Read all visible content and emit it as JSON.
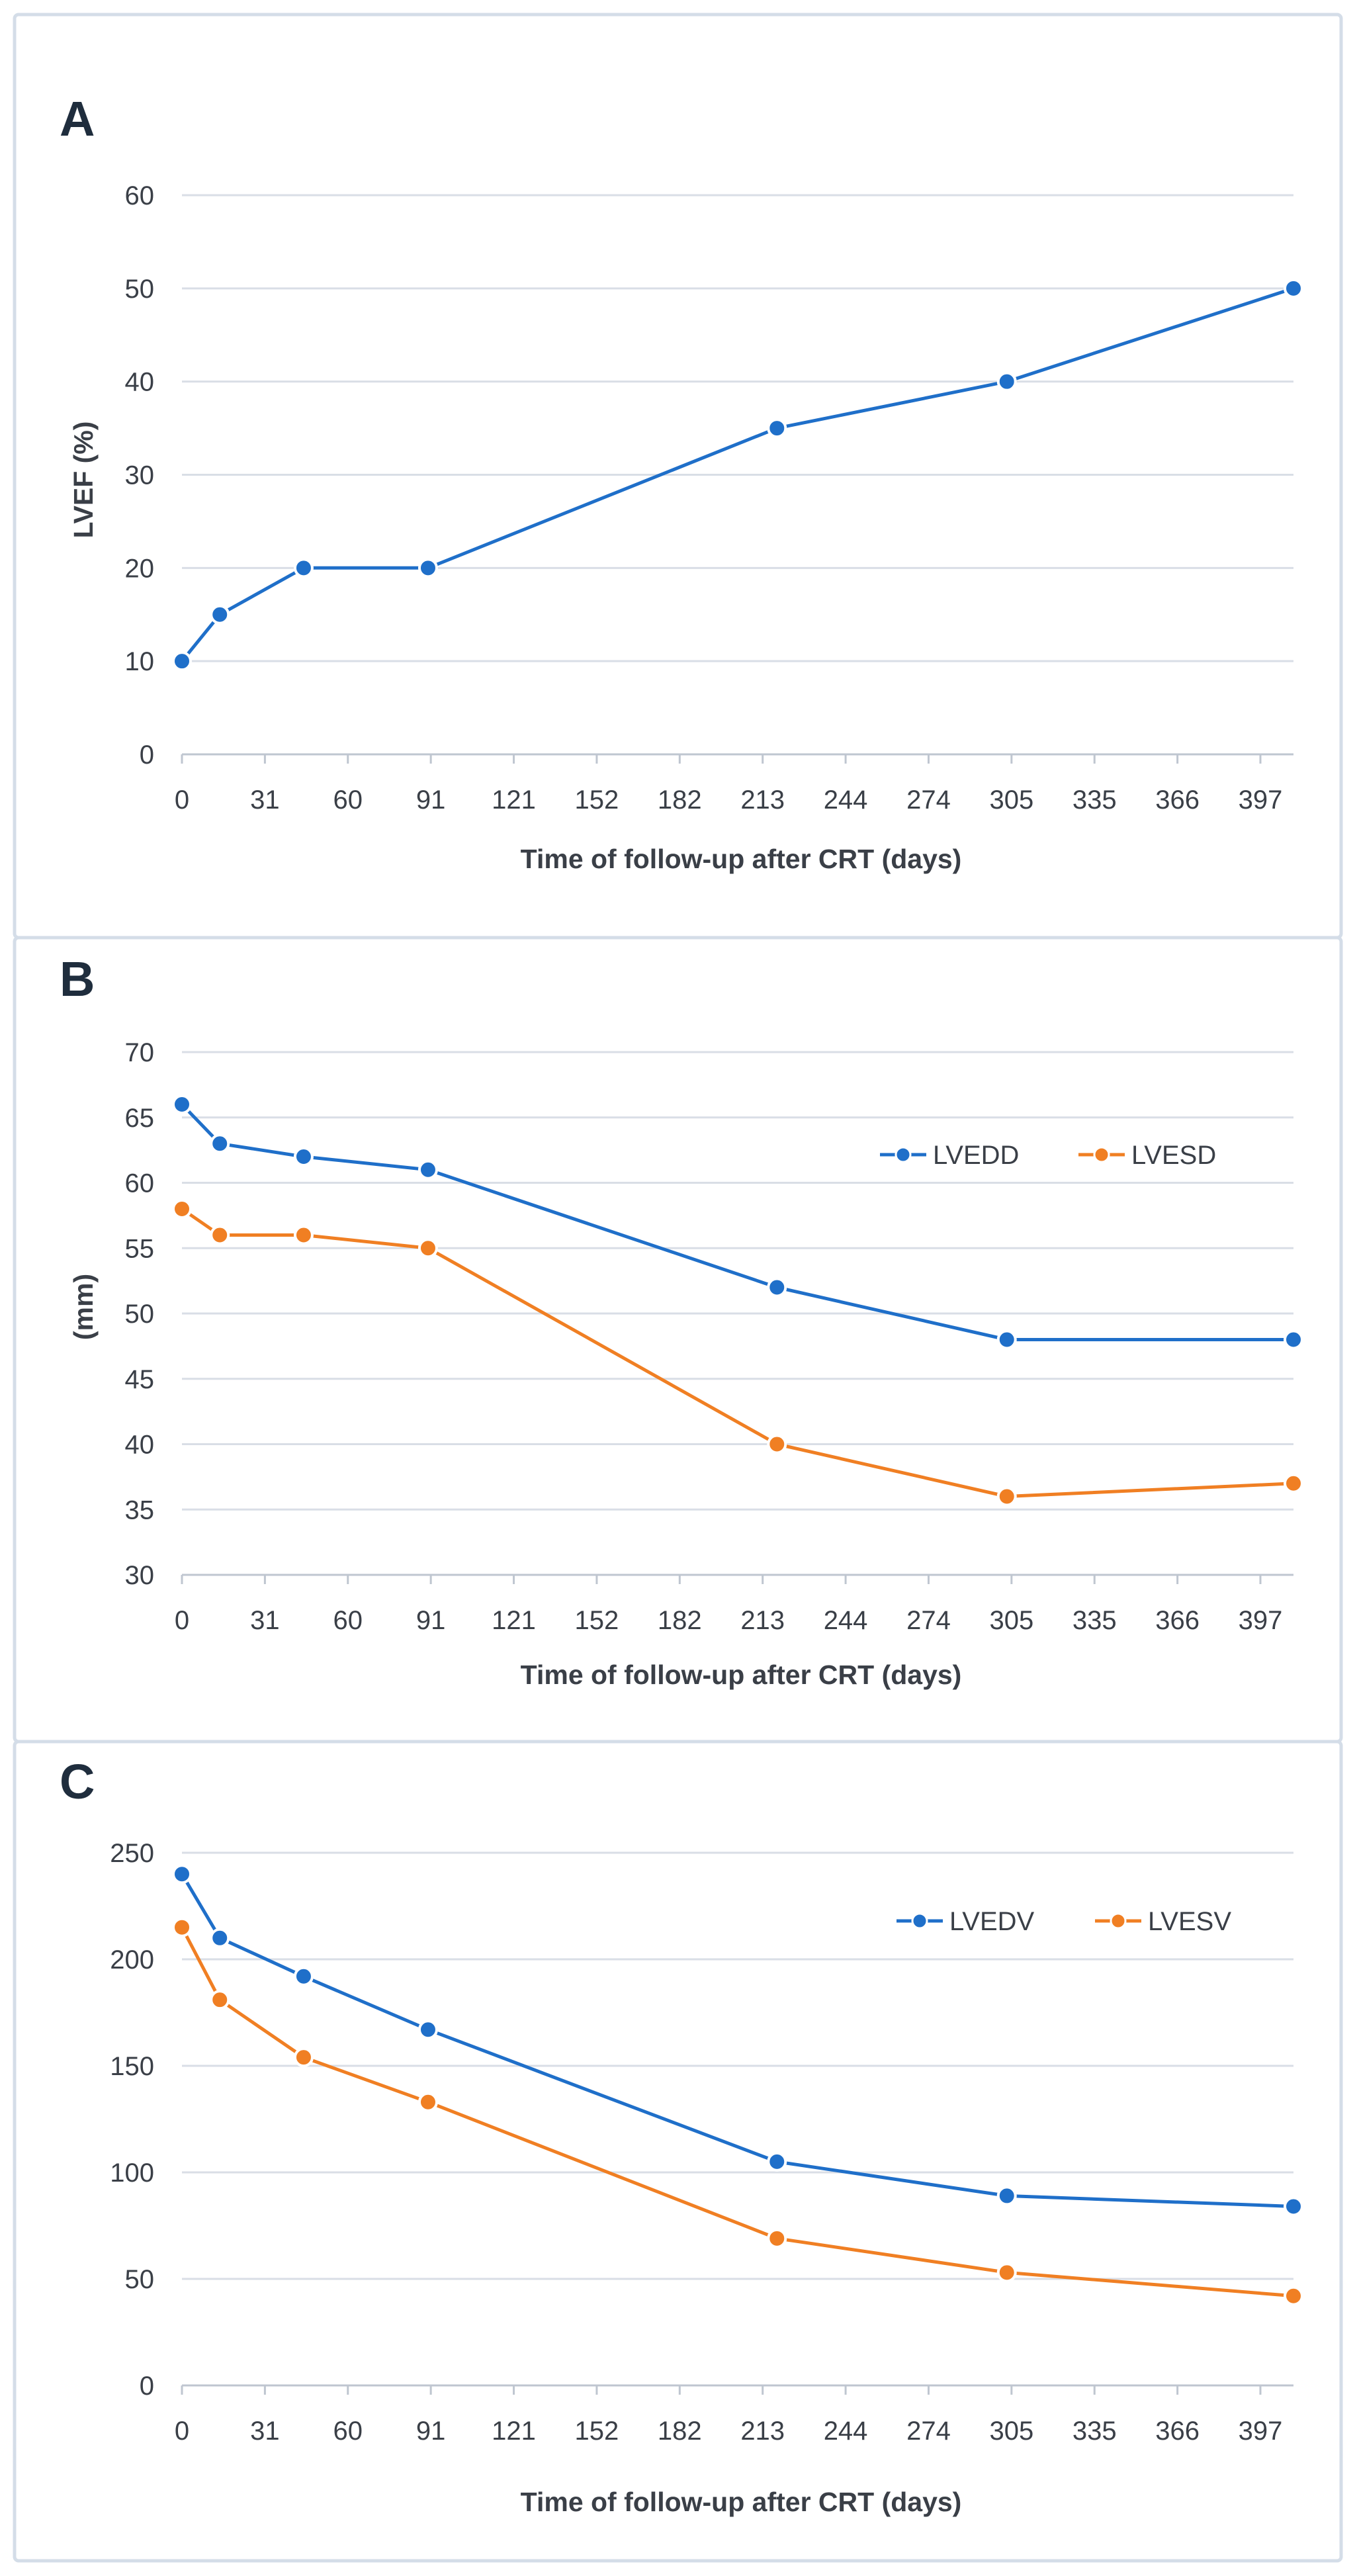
{
  "colors": {
    "blue": "#1f6fc9",
    "orange": "#f07f23"
  },
  "chart_data": [
    {
      "panel": "A",
      "type": "line",
      "title": "",
      "xlabel": "Time of follow-up after CRT (days)",
      "ylabel": "LVEF (%)",
      "x_ticks": [
        "0",
        "31",
        "60",
        "91",
        "121",
        "152",
        "182",
        "213",
        "244",
        "274",
        "305",
        "335",
        "366",
        "397"
      ],
      "xlim": [
        0,
        411
      ],
      "ylim": [
        0,
        60
      ],
      "y_ticks": [
        0,
        10,
        20,
        30,
        40,
        50,
        60
      ],
      "show_legend": false,
      "series": [
        {
          "name": "LVEF",
          "color": "blue",
          "points": [
            [
              0,
              10
            ],
            [
              14,
              15
            ],
            [
              45,
              20
            ],
            [
              91,
              20
            ],
            [
              220,
              35
            ],
            [
              305,
              40
            ],
            [
              411,
              50
            ]
          ]
        }
      ]
    },
    {
      "panel": "B",
      "type": "line",
      "title": "",
      "xlabel": "Time of follow-up after CRT (days)",
      "ylabel": "(mm)",
      "x_ticks": [
        "0",
        "31",
        "60",
        "91",
        "121",
        "152",
        "182",
        "213",
        "244",
        "274",
        "305",
        "335",
        "366",
        "397"
      ],
      "xlim": [
        0,
        411
      ],
      "ylim": [
        30,
        70
      ],
      "y_ticks": [
        30,
        35,
        40,
        45,
        50,
        55,
        60,
        65,
        70
      ],
      "show_legend": true,
      "legend_position": "top-right",
      "series": [
        {
          "name": "LVEDD",
          "color": "blue",
          "points": [
            [
              0,
              66
            ],
            [
              14,
              63
            ],
            [
              45,
              62
            ],
            [
              91,
              61
            ],
            [
              220,
              52
            ],
            [
              305,
              48
            ],
            [
              411,
              48
            ]
          ]
        },
        {
          "name": "LVESD",
          "color": "orange",
          "points": [
            [
              0,
              58
            ],
            [
              14,
              56
            ],
            [
              45,
              56
            ],
            [
              91,
              55
            ],
            [
              220,
              40
            ],
            [
              305,
              36
            ],
            [
              411,
              37
            ]
          ]
        }
      ]
    },
    {
      "panel": "C",
      "type": "line",
      "title": "",
      "xlabel": "Time of follow-up after CRT (days)",
      "ylabel": "",
      "x_ticks": [
        "0",
        "31",
        "60",
        "91",
        "121",
        "152",
        "182",
        "213",
        "244",
        "274",
        "305",
        "335",
        "366",
        "397"
      ],
      "xlim": [
        0,
        411
      ],
      "ylim": [
        0,
        250
      ],
      "y_ticks": [
        0,
        50,
        100,
        150,
        200,
        250
      ],
      "show_legend": true,
      "legend_position": "top-right",
      "series": [
        {
          "name": "LVEDV",
          "color": "blue",
          "points": [
            [
              0,
              240
            ],
            [
              14,
              210
            ],
            [
              45,
              192
            ],
            [
              91,
              167
            ],
            [
              220,
              105
            ],
            [
              305,
              89
            ],
            [
              411,
              84
            ]
          ]
        },
        {
          "name": "LVESV",
          "color": "orange",
          "points": [
            [
              0,
              215
            ],
            [
              14,
              181
            ],
            [
              45,
              154
            ],
            [
              91,
              133
            ],
            [
              220,
              69
            ],
            [
              305,
              53
            ],
            [
              411,
              42
            ]
          ]
        }
      ]
    }
  ]
}
